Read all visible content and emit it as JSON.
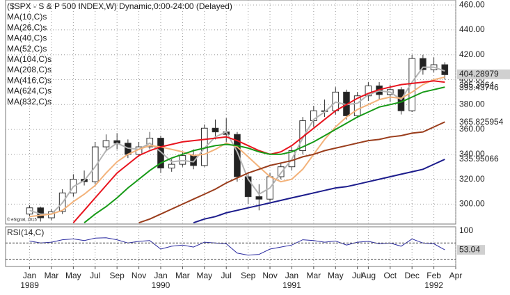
{
  "chart_data": {
    "type": "candlestick",
    "title": "($SPX - S & P 500 INDEX,W) Dynamic,0:00-24:00 (Delayed)",
    "credit": "© eSignal, 2015",
    "x": [
      0,
      1,
      2,
      3,
      4,
      5,
      6,
      7,
      8,
      9,
      10,
      11,
      12,
      13,
      14,
      15,
      16,
      17,
      18,
      19,
      20,
      21,
      22,
      23,
      24,
      25,
      26,
      27,
      28,
      29,
      30,
      31,
      32,
      33,
      34,
      35,
      36,
      37,
      38
    ],
    "open": [
      292,
      297,
      289,
      294,
      309,
      320,
      318,
      346,
      351,
      349,
      340,
      346,
      353,
      329,
      332,
      339,
      331,
      361,
      358,
      356,
      322,
      306,
      304,
      322,
      330,
      343,
      367,
      375,
      375,
      390,
      371,
      387,
      395,
      388,
      392,
      375,
      417,
      408,
      412
    ],
    "high": [
      299,
      298,
      296,
      312,
      324,
      327,
      350,
      356,
      357,
      352,
      350,
      358,
      355,
      336,
      342,
      344,
      364,
      368,
      369,
      358,
      326,
      316,
      325,
      333,
      346,
      370,
      379,
      384,
      394,
      392,
      390,
      398,
      398,
      396,
      394,
      420,
      420,
      418,
      414
    ],
    "low": [
      290,
      286,
      287,
      292,
      306,
      315,
      316,
      342,
      344,
      337,
      338,
      344,
      325,
      326,
      330,
      328,
      330,
      352,
      350,
      318,
      300,
      295,
      302,
      320,
      327,
      340,
      362,
      370,
      372,
      368,
      369,
      383,
      384,
      382,
      372,
      374,
      404,
      406,
      400
    ],
    "close": [
      297,
      289,
      294,
      309,
      320,
      318,
      346,
      351,
      349,
      340,
      346,
      353,
      329,
      332,
      339,
      331,
      361,
      358,
      356,
      322,
      306,
      304,
      322,
      330,
      343,
      367,
      375,
      375,
      390,
      371,
      387,
      395,
      388,
      392,
      375,
      417,
      408,
      412,
      404
    ],
    "series": [
      {
        "name": "MA(10,C)s",
        "color": "#b4b4b4",
        "values": [
          295,
          292,
          292,
          301,
          314,
          319,
          330,
          343,
          349,
          345,
          344,
          349,
          342,
          334,
          335,
          334,
          345,
          354,
          358,
          342,
          320,
          308,
          313,
          325,
          336,
          353,
          368,
          374,
          382,
          380,
          381,
          388,
          391,
          390,
          384,
          398,
          410,
          410,
          407
        ]
      },
      {
        "name": "MA(26,C)s",
        "color": "#f3b27a",
        "values": [
          290,
          291,
          292,
          295,
          302,
          308,
          315,
          325,
          334,
          340,
          344,
          347,
          346,
          344,
          342,
          339,
          340,
          344,
          349,
          346,
          338,
          330,
          322,
          318,
          320,
          328,
          340,
          352,
          362,
          370,
          376,
          380,
          384,
          386,
          385,
          390,
          396,
          400,
          402
        ]
      },
      {
        "name": "MA(40,C)s",
        "color": "#e8141e",
        "values": [
          null,
          null,
          null,
          null,
          285,
          295,
          305,
          315,
          325,
          332,
          339,
          343,
          346,
          348,
          350,
          351,
          352,
          353,
          354,
          351,
          347,
          343,
          340,
          342,
          347,
          354,
          361,
          368,
          375,
          380,
          385,
          389,
          392,
          394,
          396,
          397,
          398,
          399,
          398
        ]
      },
      {
        "name": "MA(52,C)s",
        "color": "#169a16",
        "values": [
          null,
          null,
          null,
          null,
          null,
          285,
          292,
          298,
          305,
          313,
          320,
          327,
          333,
          337,
          340,
          343,
          345,
          347,
          348,
          347,
          345,
          342,
          340,
          340,
          342,
          346,
          350,
          355,
          360,
          365,
          370,
          374,
          378,
          380,
          382,
          386,
          390,
          392,
          394
        ]
      },
      {
        "name": "MA(104,C)s",
        "color": "#9a3d1c",
        "values": [
          null,
          null,
          null,
          null,
          null,
          null,
          null,
          null,
          null,
          null,
          285,
          288,
          292,
          296,
          300,
          304,
          308,
          312,
          317,
          321,
          325,
          328,
          331,
          333,
          335,
          338,
          340,
          343,
          345,
          347,
          349,
          351,
          352,
          354,
          355,
          357,
          358,
          362,
          366
        ]
      },
      {
        "name": "MA(208,C)s",
        "color": "#1c1c8c",
        "values": [
          null,
          null,
          null,
          null,
          null,
          null,
          null,
          null,
          null,
          null,
          null,
          null,
          null,
          null,
          null,
          285,
          288,
          290,
          293,
          295,
          297,
          299,
          301,
          303,
          305,
          307,
          309,
          311,
          313,
          314,
          316,
          318,
          320,
          322,
          324,
          326,
          328,
          332,
          336
        ]
      },
      {
        "name": "MA(416,C)s",
        "color": "#22d8e8",
        "values": [
          null,
          null,
          null,
          null,
          null,
          null,
          null,
          null,
          null,
          null,
          null,
          null,
          null,
          null,
          null,
          null,
          null,
          null,
          null,
          null,
          null,
          null,
          null,
          null,
          null,
          null,
          null,
          null,
          null,
          null,
          null,
          null,
          null,
          null,
          null,
          null,
          null,
          null,
          null
        ]
      },
      {
        "name": "MA(624,C)s",
        "color": "#f4b8c8",
        "values": [
          null,
          null,
          null,
          null,
          null,
          null,
          null,
          null,
          null,
          null,
          null,
          null,
          null,
          null,
          null,
          null,
          null,
          null,
          null,
          null,
          null,
          null,
          null,
          null,
          null,
          null,
          null,
          null,
          null,
          null,
          null,
          null,
          null,
          null,
          null,
          null,
          null,
          null,
          null
        ]
      },
      {
        "name": "MA(832,C)s",
        "color": "#22c822",
        "values": [
          null,
          null,
          null,
          null,
          null,
          null,
          null,
          null,
          null,
          null,
          null,
          null,
          null,
          null,
          null,
          null,
          null,
          null,
          null,
          null,
          null,
          null,
          null,
          null,
          null,
          null,
          null,
          null,
          null,
          null,
          null,
          null,
          null,
          null,
          null,
          null,
          null,
          null,
          null
        ]
      }
    ],
    "last_labels": [
      {
        "value": 404.28979,
        "label": "404.28979",
        "boxed": true
      },
      {
        "value": 395.3064,
        "label": "395.3064"
      },
      {
        "value": 393.43746,
        "label": "393.43746"
      },
      {
        "value": 365.825954,
        "label": "365.825954"
      },
      {
        "value": 335.95066,
        "label": "335.95066"
      }
    ],
    "xlim": [
      -2.2,
      39
    ],
    "xticks": [
      {
        "value": 0,
        "label": "Jan"
      },
      {
        "value": 2,
        "label": "Mar"
      },
      {
        "value": 4,
        "label": "May"
      },
      {
        "value": 6,
        "label": "Jul"
      },
      {
        "value": 8,
        "label": "Sep"
      },
      {
        "value": 10,
        "label": "Nov"
      },
      {
        "value": 12,
        "label": "Jan"
      },
      {
        "value": 14,
        "label": "Mar"
      },
      {
        "value": 16,
        "label": "May"
      },
      {
        "value": 18,
        "label": "Jul"
      },
      {
        "value": 20,
        "label": "Sep"
      },
      {
        "value": 22,
        "label": "Nov"
      },
      {
        "value": 24,
        "label": "Jan"
      },
      {
        "value": 26,
        "label": "Mar"
      },
      {
        "value": 28,
        "label": "May"
      },
      {
        "value": 30,
        "label": "Jul"
      },
      {
        "value": 31,
        "label": "Aug"
      },
      {
        "value": 33,
        "label": "Oct"
      },
      {
        "value": 35,
        "label": "Dec"
      },
      {
        "value": 37,
        "label": "Feb"
      },
      {
        "value": 39,
        "label": "Apr"
      }
    ],
    "years": [
      {
        "value": 0,
        "label": "1989"
      },
      {
        "value": 12,
        "label": "1990"
      },
      {
        "value": 24,
        "label": "1991"
      },
      {
        "value": 37,
        "label": "1992"
      }
    ],
    "ylim": [
      284,
      464
    ],
    "yticks": [
      300,
      320,
      340,
      360,
      380,
      400,
      420,
      440,
      460
    ],
    "yticklabels": [
      {
        "value": 300,
        "label": "300.00"
      },
      {
        "value": 320,
        "label": "320.00"
      },
      {
        "value": 340,
        "label": "340.00"
      },
      {
        "value": 360,
        "label": "360.00"
      },
      {
        "value": 380,
        "label": "380.00"
      },
      {
        "value": 400,
        "label": "400.00"
      },
      {
        "value": 420,
        "label": "420.00"
      },
      {
        "value": 440,
        "label": "440.00"
      },
      {
        "value": 460,
        "label": "460.00"
      }
    ],
    "rsi": {
      "name": "RSI(14,C)",
      "color": "#2a2aa0",
      "values": [
        75,
        70,
        72,
        78,
        80,
        76,
        82,
        83,
        78,
        70,
        74,
        76,
        55,
        62,
        65,
        60,
        72,
        70,
        68,
        45,
        40,
        42,
        55,
        60,
        65,
        78,
        76,
        72,
        75,
        65,
        72,
        74,
        68,
        70,
        62,
        80,
        70,
        68,
        53.04
      ],
      "last_label": "53.04",
      "ylim": [
        12,
        110
      ],
      "yticks": [
        100
      ],
      "levels": [
        70,
        30
      ]
    }
  }
}
